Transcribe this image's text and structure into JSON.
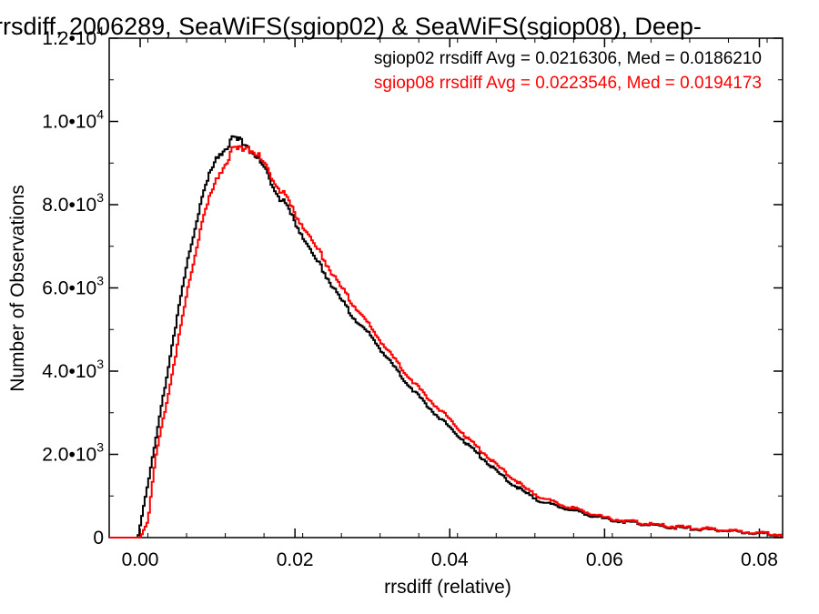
{
  "chart_data": {
    "type": "line",
    "title": "rrsdiff, 2006289, SeaWiFS(sgiop02) & SeaWiFS(sgiop08), Deep-",
    "xlabel": "rrsdiff (relative)",
    "ylabel": "Number of Observations",
    "xlim": [
      -0.004,
      0.083
    ],
    "ylim": [
      0,
      12000
    ],
    "x_ticks": [
      0.0,
      0.02,
      0.04,
      0.06,
      0.08
    ],
    "x_tick_labels": [
      "0.00",
      "0.02",
      "0.04",
      "0.06",
      "0.08"
    ],
    "y_ticks": [
      0,
      2000,
      4000,
      6000,
      8000,
      10000,
      12000
    ],
    "y_tick_labels": [
      {
        "mant": "0",
        "exp": ""
      },
      {
        "mant": "2.0•10",
        "exp": "3"
      },
      {
        "mant": "4.0•10",
        "exp": "3"
      },
      {
        "mant": "6.0•10",
        "exp": "3"
      },
      {
        "mant": "8.0•10",
        "exp": "3"
      },
      {
        "mant": "1.0•10",
        "exp": "4"
      },
      {
        "mant": "1.2•10",
        "exp": "4"
      }
    ],
    "grid": false,
    "step": true,
    "legend_position": "top-right",
    "legend": [
      "sgiop02 rrsdiff Avg = 0.0216306, Med = 0.0186210",
      "sgiop08 rrsdiff Avg = 0.0223546, Med = 0.0194173"
    ],
    "series": [
      {
        "name": "sgiop02",
        "color": "#000000",
        "x": [
          -0.004,
          -0.0003,
          0.0,
          0.002,
          0.004,
          0.006,
          0.008,
          0.01,
          0.012,
          0.013,
          0.014,
          0.016,
          0.018,
          0.02,
          0.022,
          0.024,
          0.026,
          0.028,
          0.03,
          0.032,
          0.034,
          0.036,
          0.038,
          0.04,
          0.042,
          0.044,
          0.046,
          0.048,
          0.05,
          0.052,
          0.055,
          0.058,
          0.06,
          0.063,
          0.066,
          0.07,
          0.075,
          0.08,
          0.083
        ],
        "y": [
          0,
          0,
          300,
          2300,
          4500,
          6500,
          8200,
          9200,
          9550,
          9550,
          9400,
          8900,
          8200,
          7600,
          6900,
          6300,
          5700,
          5200,
          4800,
          4300,
          3800,
          3400,
          3000,
          2650,
          2300,
          1950,
          1600,
          1300,
          1050,
          850,
          700,
          550,
          450,
          380,
          300,
          230,
          180,
          100,
          60
        ]
      },
      {
        "name": "sgiop08",
        "color": "#ff0000",
        "x": [
          -0.004,
          0.0,
          0.001,
          0.002,
          0.004,
          0.006,
          0.008,
          0.01,
          0.012,
          0.014,
          0.016,
          0.018,
          0.02,
          0.022,
          0.024,
          0.026,
          0.028,
          0.03,
          0.032,
          0.034,
          0.036,
          0.038,
          0.04,
          0.042,
          0.044,
          0.046,
          0.048,
          0.05,
          0.052,
          0.055,
          0.058,
          0.06,
          0.063,
          0.066,
          0.07,
          0.075,
          0.08,
          0.083
        ],
        "y": [
          0,
          0,
          400,
          1900,
          3800,
          5800,
          7600,
          8700,
          9300,
          9400,
          9000,
          8400,
          7800,
          7200,
          6600,
          6000,
          5500,
          5000,
          4500,
          4000,
          3600,
          3200,
          2850,
          2450,
          2100,
          1750,
          1450,
          1150,
          950,
          750,
          600,
          480,
          400,
          320,
          250,
          190,
          110,
          70
        ]
      }
    ]
  }
}
